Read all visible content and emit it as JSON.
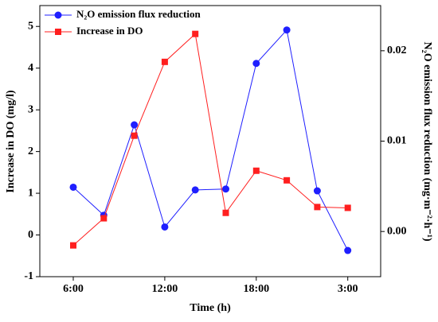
{
  "chart_data": {
    "type": "line",
    "xlabel": "Time (h)",
    "ylabel": "Increase in DO (mg/l)",
    "y2label": "N₂O emission flux reduction (mg·m⁻²·h⁻¹)",
    "categories": [
      "6:00",
      null,
      null,
      "12:00",
      null,
      null,
      "18:00",
      null,
      null,
      "3:00"
    ],
    "series": [
      {
        "name": "N₂O emission flux reduction",
        "color": "#1f1fff",
        "marker": "circle",
        "axis": "y2",
        "values": [
          0.0049,
          0.0018,
          0.0118,
          0.0005,
          0.0046,
          0.0047,
          0.0186,
          0.0223,
          0.0045,
          -0.0021
        ]
      },
      {
        "name": "Increase in DO",
        "color": "#ff1f1f",
        "marker": "square",
        "values": [
          -0.25,
          0.4,
          2.38,
          4.15,
          4.82,
          0.53,
          1.54,
          1.31,
          0.67,
          0.65
        ]
      }
    ],
    "ylim": [
      -1,
      5.5
    ],
    "yticks": [
      -1,
      0,
      1,
      2,
      3,
      4,
      5
    ],
    "y2lim": [
      -0.005,
      0.025
    ],
    "y2ticks": [
      {
        "value": 0,
        "label": "0.00"
      },
      {
        "value": 0.01,
        "label": "0.01"
      },
      {
        "value": 0.02,
        "label": "0.02"
      }
    ],
    "legend": "upper left"
  }
}
